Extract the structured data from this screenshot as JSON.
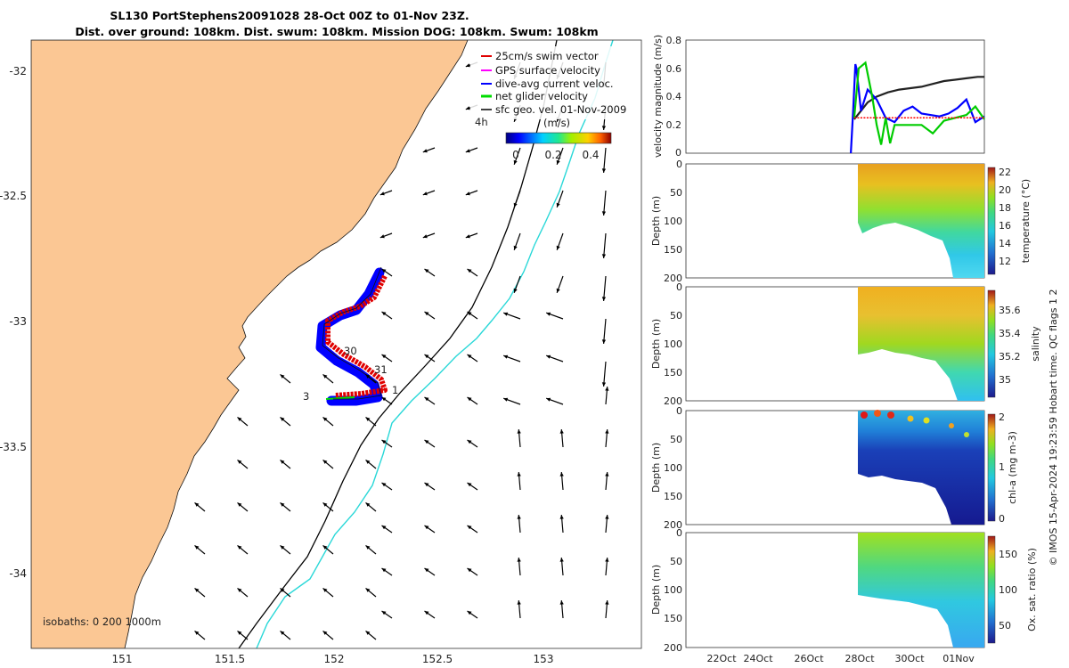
{
  "title": {
    "line1": "SL130 PortStephens20091028 28-Oct 00Z to 01-Nov 23Z.",
    "line2": "Dist. over ground: 108km. Dist. swum: 108km. Mission DOG: 108km. Swum: 108km"
  },
  "chart_data": [
    {
      "type": "map",
      "x_ticks": [
        "151",
        "151.5",
        "152",
        "152.5",
        "153"
      ],
      "y_ticks": [
        "-32",
        "-32.5",
        "-33",
        "-33.5",
        "-34"
      ],
      "xlim": [
        150.6,
        153.45
      ],
      "ylim": [
        -34.3,
        -31.87
      ],
      "legend": {
        "placement": "top-right",
        "entries": [
          {
            "label": "25cm/s swim vector",
            "color": "#e00000"
          },
          {
            "label": "GPS surface velocity",
            "color": "#ff00ff"
          },
          {
            "label": "dive-avg current veloc.",
            "color": "#0000ff"
          },
          {
            "label": "net glider velocity",
            "color": "#00dd00"
          },
          {
            "label": "sfc geo. vel. 01-Nov-2009",
            "color": "#000000"
          }
        ]
      },
      "colorbar": {
        "label": "(m/s)",
        "ticks": [
          "0",
          "0.2",
          "0.4"
        ],
        "range": [
          0,
          0.5
        ]
      },
      "marker_label": "4h",
      "track_labels": [
        "30",
        "31",
        "1",
        "3"
      ],
      "isobaths_label": "isobaths: 0   200  1000m",
      "colors": {
        "land": "#fbc794",
        "isobath_200": "#000000",
        "isobath_1000": "#2ad8d8"
      }
    },
    {
      "type": "line",
      "ylabel": "velocity magnitude (m/s)",
      "ylim": [
        0,
        0.8
      ],
      "y_ticks": [
        "0",
        "0.2",
        "0.4",
        "0.6",
        "0.8"
      ],
      "xlim": [
        20.5,
        33.8
      ],
      "series": [
        {
          "color": "#222222",
          "x": [
            28,
            28.3,
            28.6,
            29,
            29.5,
            30,
            30.5,
            31,
            31.5,
            32,
            32.5,
            33,
            33.5,
            33.8
          ],
          "y": [
            0.24,
            0.3,
            0.36,
            0.4,
            0.43,
            0.45,
            0.46,
            0.47,
            0.49,
            0.51,
            0.52,
            0.53,
            0.54,
            0.54
          ]
        },
        {
          "color": "#0000ff",
          "x": [
            27.85,
            27.95,
            28.05,
            28.1,
            28.3,
            28.6,
            29,
            29.4,
            29.8,
            30.2,
            30.6,
            31,
            31.4,
            31.8,
            32.2,
            32.6,
            33,
            33.4,
            33.8
          ],
          "y": [
            0,
            0.3,
            0.63,
            0.6,
            0.3,
            0.45,
            0.38,
            0.25,
            0.22,
            0.3,
            0.33,
            0.28,
            0.27,
            0.26,
            0.28,
            0.32,
            0.38,
            0.22,
            0.26
          ]
        },
        {
          "color": "#00cc00",
          "x": [
            28,
            28.2,
            28.5,
            28.8,
            29,
            29.2,
            29.4,
            29.6,
            29.8,
            30,
            30.5,
            31,
            31.5,
            32,
            32.5,
            33,
            33.4,
            33.8
          ],
          "y": [
            0.25,
            0.6,
            0.64,
            0.4,
            0.2,
            0.06,
            0.25,
            0.07,
            0.2,
            0.2,
            0.2,
            0.2,
            0.14,
            0.23,
            0.25,
            0.27,
            0.33,
            0.24
          ]
        },
        {
          "color": "#ff0000",
          "x": [
            28,
            29,
            30,
            31,
            32,
            33,
            33.8
          ],
          "y": [
            0.25,
            0.25,
            0.25,
            0.25,
            0.25,
            0.25,
            0.25
          ]
        }
      ]
    },
    {
      "type": "heatmap",
      "variable": "temperature",
      "ylabel": "Depth (m)",
      "colorbar_label": "temperature (°C)",
      "y_ticks": [
        "0",
        "50",
        "100",
        "150",
        "200"
      ],
      "ylim": [
        200,
        0
      ],
      "cbar_ticks": [
        "12",
        "14",
        "16",
        "18",
        "20",
        "22"
      ],
      "cbar_range": [
        11,
        23
      ]
    },
    {
      "type": "heatmap",
      "variable": "salinity",
      "ylabel": "Depth (m)",
      "colorbar_label": "salinity",
      "y_ticks": [
        "0",
        "50",
        "100",
        "150",
        "200"
      ],
      "ylim": [
        200,
        0
      ],
      "cbar_ticks": [
        "35",
        "35.2",
        "35.4",
        "35.6"
      ],
      "cbar_range": [
        34.85,
        35.75
      ]
    },
    {
      "type": "heatmap",
      "variable": "chl-a",
      "ylabel": "Depth (m)",
      "colorbar_label": "chl-a (mg m-3)",
      "y_ticks": [
        "0",
        "50",
        "100",
        "150",
        "200"
      ],
      "ylim": [
        200,
        0
      ],
      "cbar_ticks": [
        "0",
        "1",
        "2"
      ],
      "cbar_range": [
        0,
        2
      ]
    },
    {
      "type": "heatmap",
      "variable": "oxygen saturation",
      "ylabel": "Depth (m)",
      "colorbar_label": "Ox. sat. ratio (%)",
      "y_ticks": [
        "0",
        "50",
        "100",
        "150",
        "200"
      ],
      "ylim": [
        200,
        0
      ],
      "cbar_ticks": [
        "50",
        "100",
        "150"
      ],
      "cbar_range": [
        25,
        175
      ],
      "x_ticks": [
        "22Oct",
        "24Oct",
        "26Oct",
        "28Oct",
        "30Oct",
        "01Nov"
      ]
    }
  ],
  "footer": "© IMOS 15-Apr-2024 19:23:59 Hobart time. QC flags 1  2"
}
